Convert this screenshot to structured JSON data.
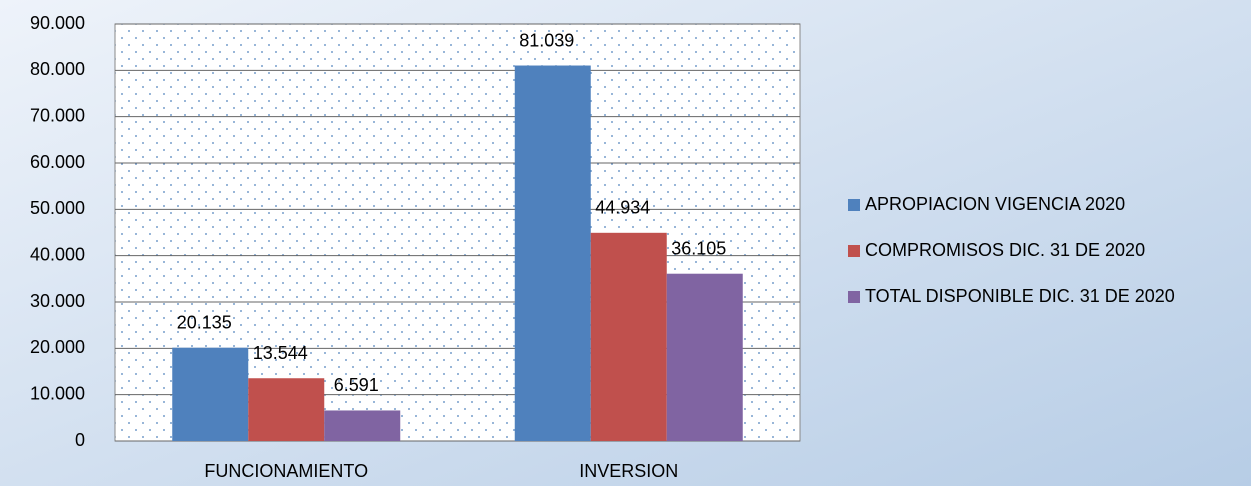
{
  "chart_data": {
    "type": "bar",
    "categories": [
      "FUNCIONAMIENTO",
      "INVERSION"
    ],
    "series": [
      {
        "name": "APROPIACION VIGENCIA 2020",
        "color": "#4f81bd",
        "values": [
          20135,
          81039
        ],
        "value_labels": [
          "20.135",
          "81.039"
        ]
      },
      {
        "name": "COMPROMISOS DIC. 31 DE 2020",
        "color": "#c0504d",
        "values": [
          13544,
          44934
        ],
        "value_labels": [
          "13.544",
          "44.934"
        ]
      },
      {
        "name": "TOTAL DISPONIBLE DIC. 31 DE 2020",
        "color": "#8064a2",
        "values": [
          6591,
          36105
        ],
        "value_labels": [
          "6.591",
          "36.105"
        ]
      }
    ],
    "ylim": [
      0,
      90000
    ],
    "yticks": [
      0,
      {
        "value": 10000,
        "label": "10.000"
      },
      {
        "value": 20000,
        "label": "20.000"
      },
      {
        "value": 30000,
        "label": "30.000"
      },
      {
        "value": 40000,
        "label": "40.000"
      },
      {
        "value": 50000,
        "label": "50.000"
      },
      {
        "value": 60000,
        "label": "60.000"
      },
      {
        "value": 70000,
        "label": "70.000"
      },
      {
        "value": 80000,
        "label": "80.000"
      },
      {
        "value": 90000,
        "label": "90.000"
      }
    ],
    "grid": true,
    "legend": "right"
  }
}
